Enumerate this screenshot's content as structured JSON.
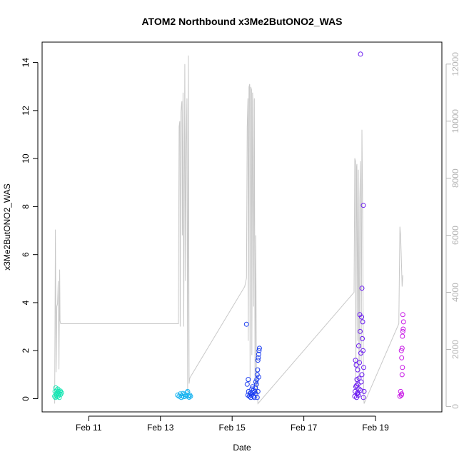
{
  "chart_data": {
    "type": "scatter",
    "title": "ATOM2 Northbound x3Me2ButONO2_WAS",
    "xlabel": "Date",
    "ylabel": "x3Me2ButONO2_WAS",
    "y_ticks": [
      0,
      2,
      4,
      6,
      8,
      10,
      12,
      14
    ],
    "y2_ticks": [
      0,
      2000,
      4000,
      6000,
      8000,
      10000,
      12000
    ],
    "x_ticks": [
      {
        "label": "Feb 11",
        "day": 11
      },
      {
        "label": "Feb 13",
        "day": 13
      },
      {
        "label": "Feb 15",
        "day": 15
      },
      {
        "label": "Feb 17",
        "day": 17
      },
      {
        "label": "Feb 19",
        "day": 19
      }
    ],
    "xlim_days": [
      9.7,
      20.85
    ],
    "ylim": [
      -0.55,
      14.85
    ],
    "y2lim": [
      -190,
      12770
    ],
    "colors": {
      "altitude_line": "#c8c8c8",
      "axis": "#000000",
      "y2_axis": "#b4b4b4",
      "frame": "#000000"
    },
    "series": [
      {
        "color": "#19e6b4",
        "points": [
          [
            10.05,
            0.1
          ],
          [
            10.06,
            0.3
          ],
          [
            10.07,
            0.05
          ],
          [
            10.08,
            0.45
          ],
          [
            10.09,
            0.2
          ],
          [
            10.1,
            0.15
          ],
          [
            10.11,
            0.35
          ],
          [
            10.12,
            0.08
          ],
          [
            10.13,
            0.25
          ],
          [
            10.14,
            0.4
          ],
          [
            10.15,
            0.12
          ],
          [
            10.16,
            0.3
          ],
          [
            10.17,
            0.2
          ],
          [
            10.18,
            0.05
          ],
          [
            10.2,
            0.28
          ],
          [
            10.21,
            0.32
          ],
          [
            10.22,
            0.18
          ],
          [
            10.24,
            0.25
          ]
        ]
      },
      {
        "color": "#1ab4f0",
        "points": [
          [
            13.48,
            0.15
          ],
          [
            13.52,
            0.1
          ],
          [
            13.55,
            0.2
          ],
          [
            13.58,
            0.05
          ],
          [
            13.6,
            0.12
          ],
          [
            13.63,
            0.22
          ],
          [
            13.65,
            0.08
          ],
          [
            13.67,
            0.18
          ],
          [
            13.7,
            0.1
          ],
          [
            13.72,
            0.15
          ],
          [
            13.74,
            0.25
          ],
          [
            13.76,
            0.3
          ],
          [
            13.78,
            0.12
          ],
          [
            13.8,
            0.06
          ],
          [
            13.82,
            0.15
          ],
          [
            13.84,
            0.1
          ]
        ]
      },
      {
        "color": "#1a3cf0",
        "points": [
          [
            15.4,
            3.1
          ],
          [
            15.42,
            0.6
          ],
          [
            15.45,
            0.8
          ],
          [
            15.46,
            0.3
          ],
          [
            15.48,
            0.1
          ],
          [
            15.5,
            0.2
          ],
          [
            15.52,
            0.05
          ],
          [
            15.54,
            0.15
          ],
          [
            15.55,
            0.4
          ],
          [
            15.57,
            0.5
          ],
          [
            15.58,
            0.25
          ],
          [
            15.6,
            0.1
          ],
          [
            15.62,
            0.05
          ],
          [
            15.63,
            0.3
          ],
          [
            15.65,
            0.45
          ],
          [
            15.66,
            0.2
          ],
          [
            15.68,
            0.6
          ],
          [
            15.69,
            0.8
          ],
          [
            15.7,
            1.0
          ],
          [
            15.71,
            1.2
          ],
          [
            15.72,
            1.6
          ],
          [
            15.73,
            1.7
          ],
          [
            15.74,
            1.85
          ],
          [
            15.75,
            2.0
          ],
          [
            15.76,
            2.1
          ],
          [
            15.74,
            0.9
          ],
          [
            15.72,
            0.3
          ],
          [
            15.7,
            0.05
          ],
          [
            15.66,
            0.7
          ],
          [
            15.6,
            0.35
          ],
          [
            15.52,
            0.25
          ],
          [
            15.44,
            0.15
          ]
        ]
      },
      {
        "color": "#6a1af0",
        "points": [
          [
            18.42,
            0.1
          ],
          [
            18.43,
            0.3
          ],
          [
            18.44,
            1.6
          ],
          [
            18.45,
            0.5
          ],
          [
            18.46,
            1.4
          ],
          [
            18.47,
            0.05
          ],
          [
            18.48,
            0.8
          ],
          [
            18.49,
            0.2
          ],
          [
            18.5,
            1.2
          ],
          [
            18.51,
            0.6
          ],
          [
            18.52,
            0.15
          ],
          [
            18.53,
            2.2
          ],
          [
            18.54,
            0.4
          ],
          [
            18.55,
            1.5
          ],
          [
            18.56,
            3.5
          ],
          [
            18.57,
            2.8
          ],
          [
            18.58,
            14.35
          ],
          [
            18.59,
            1.9
          ],
          [
            18.6,
            0.7
          ],
          [
            18.61,
            3.4
          ],
          [
            18.62,
            4.6
          ],
          [
            18.63,
            2.5
          ],
          [
            18.64,
            3.2
          ],
          [
            18.65,
            2.0
          ],
          [
            18.66,
            8.05
          ],
          [
            18.67,
            1.3
          ],
          [
            18.68,
            0.3
          ],
          [
            18.66,
            0.05
          ],
          [
            18.62,
            1.0
          ],
          [
            18.58,
            0.35
          ],
          [
            18.54,
            0.85
          ],
          [
            18.5,
            0.25
          ],
          [
            18.47,
            0.55
          ]
        ]
      },
      {
        "color": "#c81ae6",
        "points": [
          [
            19.68,
            0.1
          ],
          [
            19.7,
            0.3
          ],
          [
            19.72,
            2.0
          ],
          [
            19.73,
            1.7
          ],
          [
            19.74,
            2.1
          ],
          [
            19.75,
            2.6
          ],
          [
            19.76,
            2.8
          ],
          [
            19.77,
            2.9
          ],
          [
            19.78,
            3.2
          ],
          [
            19.76,
            3.5
          ],
          [
            19.75,
            1.3
          ],
          [
            19.74,
            1.0
          ],
          [
            19.73,
            0.2
          ],
          [
            19.72,
            0.15
          ]
        ]
      }
    ],
    "altitude_line": [
      [
        10.05,
        100
      ],
      [
        10.07,
        6200
      ],
      [
        10.09,
        1200
      ],
      [
        10.11,
        3500
      ],
      [
        10.13,
        3600
      ],
      [
        10.15,
        4400
      ],
      [
        10.17,
        1300
      ],
      [
        10.19,
        4800
      ],
      [
        10.2,
        3000
      ],
      [
        10.22,
        2900
      ],
      [
        13.5,
        2900
      ],
      [
        13.52,
        9800
      ],
      [
        13.54,
        10000
      ],
      [
        13.55,
        2800
      ],
      [
        13.57,
        10300
      ],
      [
        13.59,
        10600
      ],
      [
        13.6,
        10700
      ],
      [
        13.61,
        6000
      ],
      [
        13.63,
        11000
      ],
      [
        13.65,
        2800
      ],
      [
        13.68,
        12000
      ],
      [
        13.7,
        4400
      ],
      [
        13.72,
        9200
      ],
      [
        13.74,
        10800
      ],
      [
        13.76,
        500
      ],
      [
        13.78,
        12300
      ],
      [
        13.8,
        800
      ],
      [
        13.82,
        1000
      ],
      [
        15.35,
        4200
      ],
      [
        15.4,
        4500
      ],
      [
        15.42,
        9800
      ],
      [
        15.44,
        10800
      ],
      [
        15.45,
        2300
      ],
      [
        15.47,
        11200
      ],
      [
        15.49,
        11300
      ],
      [
        15.5,
        800
      ],
      [
        15.52,
        11200
      ],
      [
        15.54,
        11100
      ],
      [
        15.55,
        1800
      ],
      [
        15.57,
        11000
      ],
      [
        15.58,
        10700
      ],
      [
        15.6,
        3500
      ],
      [
        15.62,
        10800
      ],
      [
        15.64,
        700
      ],
      [
        15.66,
        6000
      ],
      [
        15.68,
        400
      ],
      [
        15.7,
        800
      ],
      [
        15.72,
        100
      ],
      [
        18.4,
        4000
      ],
      [
        18.42,
        8700
      ],
      [
        18.44,
        8600
      ],
      [
        18.45,
        600
      ],
      [
        18.47,
        8400
      ],
      [
        18.48,
        8500
      ],
      [
        18.5,
        2300
      ],
      [
        18.52,
        8300
      ],
      [
        18.54,
        500
      ],
      [
        18.56,
        7200
      ],
      [
        18.58,
        8600
      ],
      [
        18.6,
        1500
      ],
      [
        18.62,
        9700
      ],
      [
        18.64,
        7000
      ],
      [
        18.66,
        1200
      ],
      [
        18.68,
        100
      ],
      [
        19.65,
        2900
      ],
      [
        19.68,
        6300
      ],
      [
        19.7,
        6000
      ],
      [
        19.72,
        5200
      ],
      [
        19.74,
        4200
      ],
      [
        19.76,
        4600
      ]
    ]
  }
}
